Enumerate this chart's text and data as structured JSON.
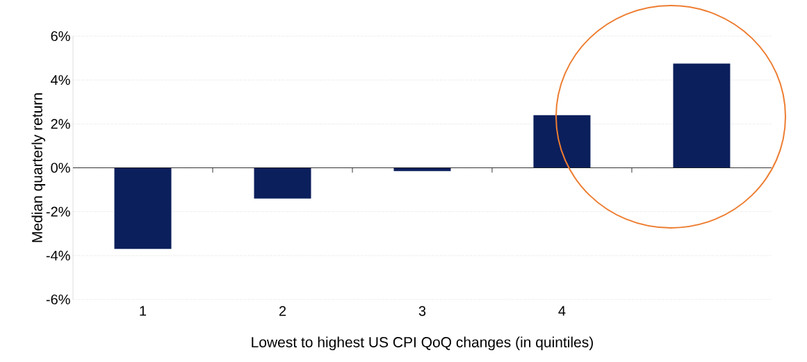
{
  "chart_data": {
    "type": "bar",
    "categories": [
      "1",
      "2",
      "3",
      "4",
      null
    ],
    "values": [
      -3.7,
      -1.4,
      -0.15,
      2.4,
      4.75
    ],
    "color": "#0b1f5c",
    "xlabel": "Lowest to highest US CPI QoQ changes (in quintiles)",
    "ylabel": "Median quarterly return",
    "ylim": [
      -6,
      6
    ],
    "yticks": [
      {
        "value": -6,
        "label": "-6%"
      },
      {
        "value": -4,
        "label": "-4%"
      },
      {
        "value": -2,
        "label": "-2%"
      },
      {
        "value": 0,
        "label": "0%"
      },
      {
        "value": 2,
        "label": "2%"
      },
      {
        "value": 4,
        "label": "4%"
      },
      {
        "value": 6,
        "label": "6%"
      }
    ],
    "grid": "y"
  }
}
